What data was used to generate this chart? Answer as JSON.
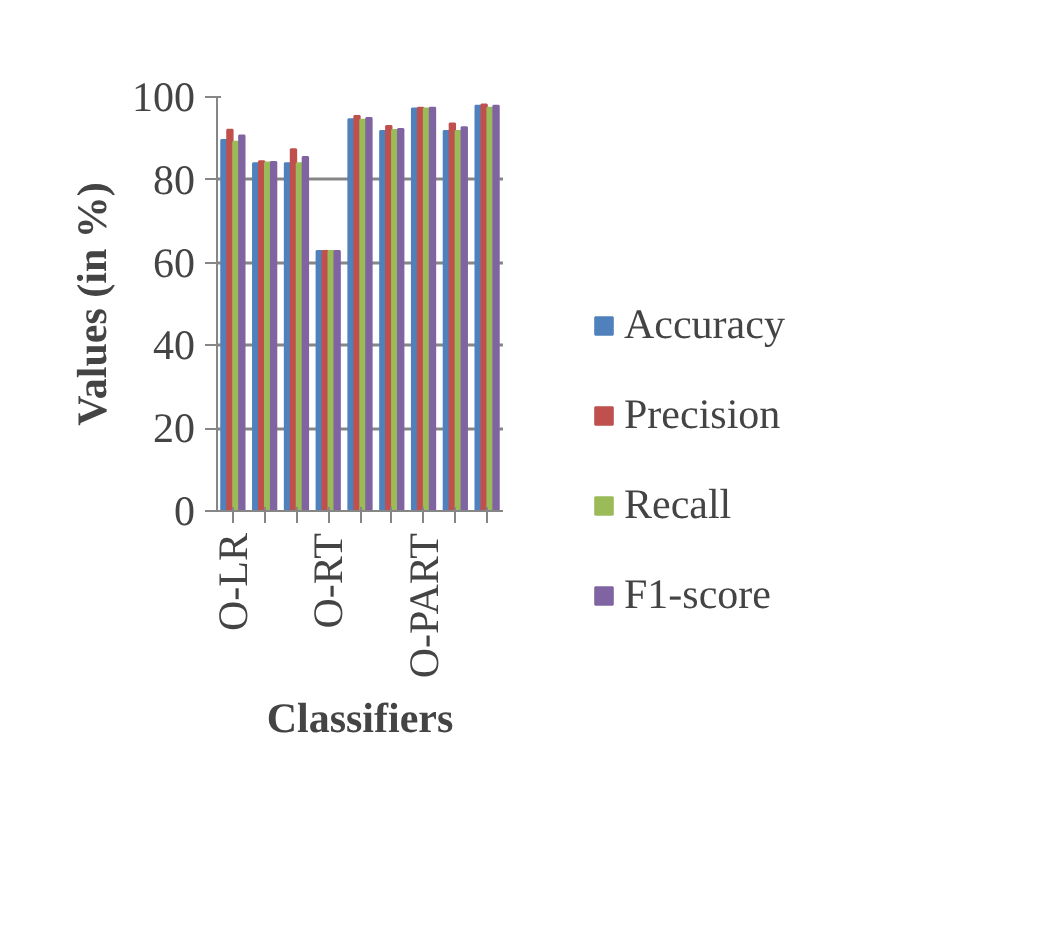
{
  "chart_data": {
    "type": "bar",
    "xlabel": "Classifiers",
    "ylabel": "Values (in %)",
    "categories": [
      "O-LR",
      null,
      null,
      "O-RT",
      null,
      null,
      "O-PART",
      null,
      null
    ],
    "series": [
      {
        "name": "Accuracy",
        "color": "#4f81bd",
        "values": [
          89.6,
          84.0,
          84.0,
          62.8,
          94.6,
          91.8,
          97.2,
          91.8,
          97.9
        ]
      },
      {
        "name": "Precision",
        "color": "#c0504d",
        "values": [
          92.1,
          84.5,
          87.4,
          62.8,
          95.4,
          93.0,
          97.4,
          93.6,
          98.2
        ]
      },
      {
        "name": "Recall",
        "color": "#9bbb59",
        "values": [
          89.2,
          84.2,
          84.0,
          62.8,
          94.5,
          92.0,
          97.2,
          91.8,
          97.4
        ]
      },
      {
        "name": "F1-score",
        "color": "#8064a2",
        "values": [
          90.7,
          84.3,
          85.5,
          62.8,
          94.9,
          92.3,
          97.4,
          92.7,
          97.9
        ]
      }
    ],
    "ylim": [
      0,
      100
    ],
    "yticks": [
      0,
      20,
      40,
      60,
      80,
      100
    ],
    "grid": "y",
    "legend": "right"
  }
}
